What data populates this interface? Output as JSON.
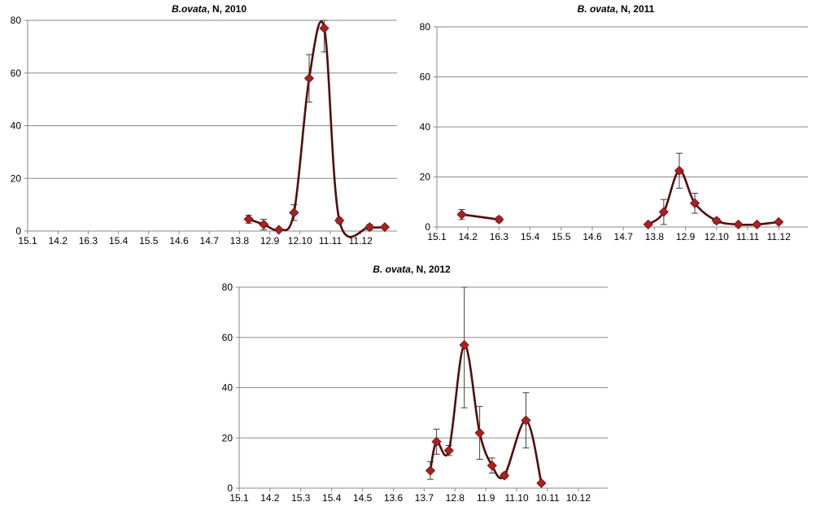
{
  "chart_data": [
    {
      "type": "line",
      "title": {
        "italic": "B.ovata",
        "rest": ", N, 2010"
      },
      "categories": [
        "15.1",
        "14.2",
        "16.3",
        "15.4",
        "15.5",
        "14.6",
        "14.7",
        "13.8",
        "12.9",
        "12.10",
        "11.11",
        "11.12"
      ],
      "ylim": [
        0,
        80
      ],
      "yticks": [
        0,
        20,
        40,
        60,
        80
      ],
      "series": [
        {
          "x": [
            7.3,
            7.8,
            8.3,
            8.8,
            9.3,
            9.8,
            10.3,
            11.3,
            11.8
          ],
          "y": [
            4.5,
            2.5,
            0.5,
            7,
            58,
            77,
            4,
            1.5,
            1.5
          ],
          "err": [
            1.5,
            2,
            0.5,
            3,
            9,
            9,
            1,
            1,
            0.5
          ],
          "segments": [
            [
              0,
              8
            ]
          ]
        }
      ]
    },
    {
      "type": "line",
      "title": {
        "italic": "B. ovata",
        "rest": ", N, 2011"
      },
      "categories": [
        "15.1",
        "14.2",
        "16.3",
        "15.4",
        "15.5",
        "14.6",
        "14.7",
        "13.8",
        "12.9",
        "12.10",
        "11.11",
        "11.12"
      ],
      "ylim": [
        0,
        80
      ],
      "yticks": [
        0,
        20,
        40,
        60,
        80
      ],
      "series": [
        {
          "x": [
            0.8,
            2.0,
            6.8,
            7.3,
            7.8,
            8.3,
            9.0,
            9.7,
            10.3,
            11.0
          ],
          "y": [
            5,
            3,
            1,
            6,
            22.5,
            9.5,
            2.5,
            1,
            1,
            2
          ],
          "err": [
            2,
            1,
            0.5,
            5,
            7,
            4,
            1,
            0.5,
            0.5,
            0.5
          ],
          "segments": [
            [
              0,
              1
            ],
            [
              2,
              9
            ]
          ]
        }
      ]
    },
    {
      "type": "line",
      "title": {
        "italic": "B. ovata",
        "rest": ", N, 2012"
      },
      "categories": [
        "15.1",
        "14.2",
        "15.3",
        "15.4",
        "14.5",
        "13.6",
        "13.7",
        "12.8",
        "11.9",
        "11.10",
        "10.11",
        "10.12"
      ],
      "ylim": [
        0,
        80
      ],
      "yticks": [
        0,
        20,
        40,
        60,
        80
      ],
      "series": [
        {
          "x": [
            6.2,
            6.4,
            6.8,
            7.3,
            7.8,
            8.2,
            8.6,
            9.3,
            9.8
          ],
          "y": [
            7,
            18.5,
            15,
            57,
            22,
            9,
            5,
            27,
            2
          ],
          "err": [
            3.5,
            5,
            2,
            25,
            10.5,
            3,
            1,
            11,
            0.5
          ],
          "segments": [
            [
              0,
              8
            ]
          ]
        }
      ]
    }
  ]
}
